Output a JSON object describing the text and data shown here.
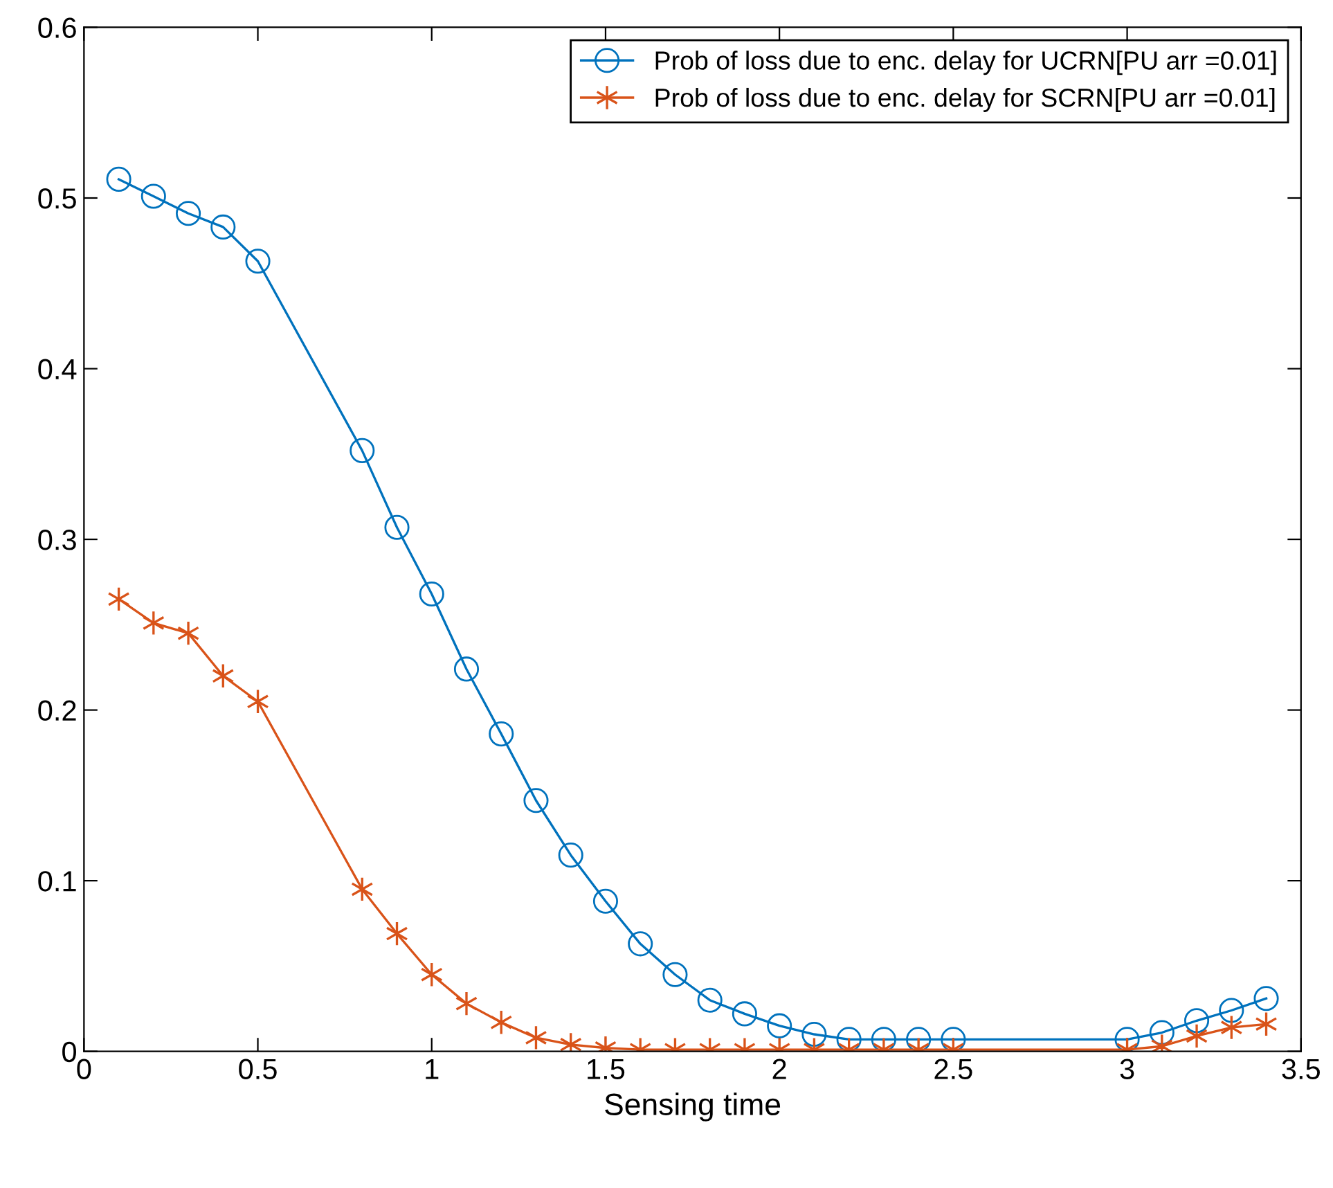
{
  "chart_data": {
    "type": "line",
    "xlabel": "Sensing time",
    "xlim": [
      0,
      3.5
    ],
    "ylim": [
      0,
      0.6
    ],
    "xticks": [
      0,
      0.5,
      1,
      1.5,
      2,
      2.5,
      3,
      3.5
    ],
    "yticks": [
      0,
      0.1,
      0.2,
      0.3,
      0.4,
      0.5,
      0.6
    ],
    "grid": false,
    "legend": "top right",
    "x": [
      0.1,
      0.2,
      0.3,
      0.4,
      0.5,
      0.8,
      0.9,
      1.0,
      1.1,
      1.2,
      1.3,
      1.4,
      1.5,
      1.6,
      1.7,
      1.8,
      1.9,
      2.0,
      2.1,
      2.2,
      2.3,
      2.4,
      2.5,
      3.0,
      3.1,
      3.2,
      3.3,
      3.4
    ],
    "series": [
      {
        "name": "Prob of loss due to enc. delay for UCRN[PU arr =0.01]",
        "color": "#0072bd",
        "marker": "circle",
        "values": [
          0.511,
          0.501,
          0.491,
          0.483,
          0.463,
          0.352,
          0.307,
          0.268,
          0.224,
          0.186,
          0.147,
          0.115,
          0.088,
          0.063,
          0.045,
          0.03,
          0.022,
          0.015,
          0.01,
          0.007,
          0.007,
          0.007,
          0.007,
          0.007,
          0.011,
          0.018,
          0.024,
          0.031
        ]
      },
      {
        "name": "Prob of loss due to enc. delay for SCRN[PU arr =0.01]",
        "color": "#d95319",
        "marker": "cross",
        "values": [
          0.265,
          0.251,
          0.245,
          0.22,
          0.205,
          0.095,
          0.069,
          0.045,
          0.028,
          0.017,
          0.008,
          0.004,
          0.002,
          0.001,
          0.001,
          0.001,
          0.001,
          0.001,
          0.001,
          0.001,
          0.001,
          0.001,
          0.001,
          0.001,
          0.003,
          0.009,
          0.014,
          0.016
        ]
      }
    ]
  }
}
